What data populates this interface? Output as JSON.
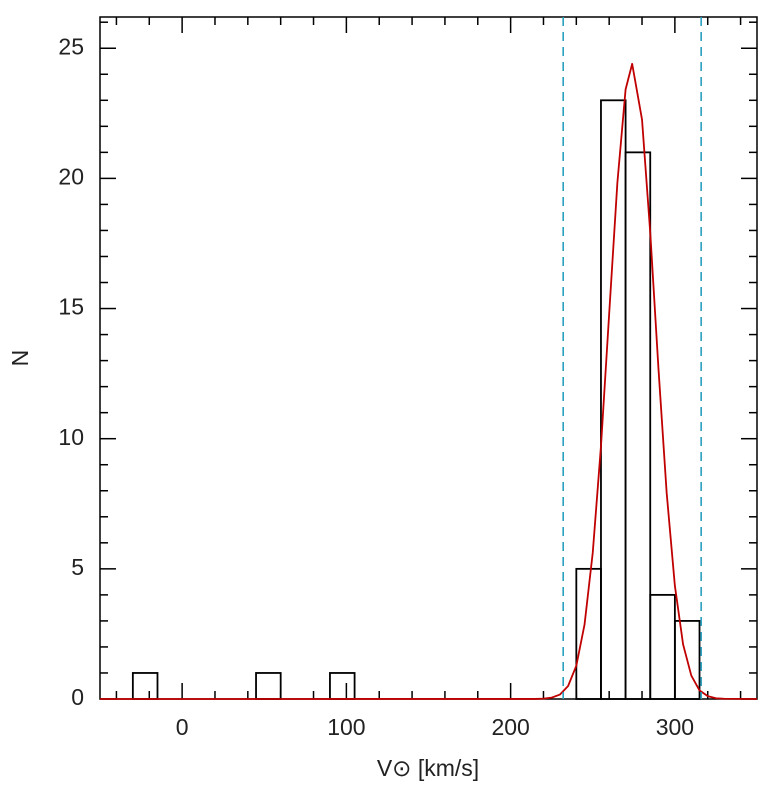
{
  "chart_data": {
    "type": "histogram",
    "xlabel": "V⊙ [km/s]",
    "ylabel": "N",
    "bins": [
      -30,
      -15,
      0,
      15,
      30,
      45,
      60,
      75,
      90,
      105,
      120,
      135,
      150,
      165,
      180,
      195,
      210,
      225,
      240,
      255,
      270,
      285,
      300,
      315
    ],
    "counts": [
      1,
      0,
      0,
      0,
      0,
      1,
      0,
      0,
      1,
      0,
      0,
      0,
      0,
      0,
      0,
      0,
      0,
      0,
      5,
      23,
      21,
      4,
      3
    ],
    "color": "#000000",
    "fit": {
      "color": "#c00000",
      "x": [
        -50,
        215,
        220,
        225,
        230,
        235,
        240,
        245,
        250,
        255,
        260,
        265,
        270,
        274,
        280,
        285,
        290,
        295,
        300,
        305,
        310,
        315,
        320,
        325,
        330,
        350
      ],
      "values": [
        0,
        0.003,
        0.014,
        0.053,
        0.17,
        0.5,
        1.28,
        2.86,
        5.62,
        9.71,
        14.8,
        19.84,
        23.42,
        24.4,
        22.26,
        17.92,
        12.7,
        7.92,
        4.35,
        2.1,
        0.9,
        0.33,
        0.11,
        0.03,
        0.01,
        0
      ]
    },
    "vlines": {
      "x": [
        232,
        316
      ],
      "color": "#2a9fc0",
      "style": "dashed"
    },
    "xlim": [
      -50,
      350
    ],
    "xticks": [
      0,
      100,
      200,
      300
    ],
    "xminorticks": [
      -40,
      -20,
      20,
      40,
      60,
      80,
      120,
      140,
      160,
      180,
      220,
      240,
      260,
      280,
      320,
      340
    ],
    "ylim": [
      0,
      26.2
    ],
    "yticks": [
      0,
      5,
      10,
      15,
      20,
      25
    ],
    "yminorticks": [
      1,
      2,
      3,
      4,
      6,
      7,
      8,
      9,
      11,
      12,
      13,
      14,
      16,
      17,
      18,
      19,
      21,
      22,
      23,
      24,
      26
    ],
    "grid": false
  }
}
